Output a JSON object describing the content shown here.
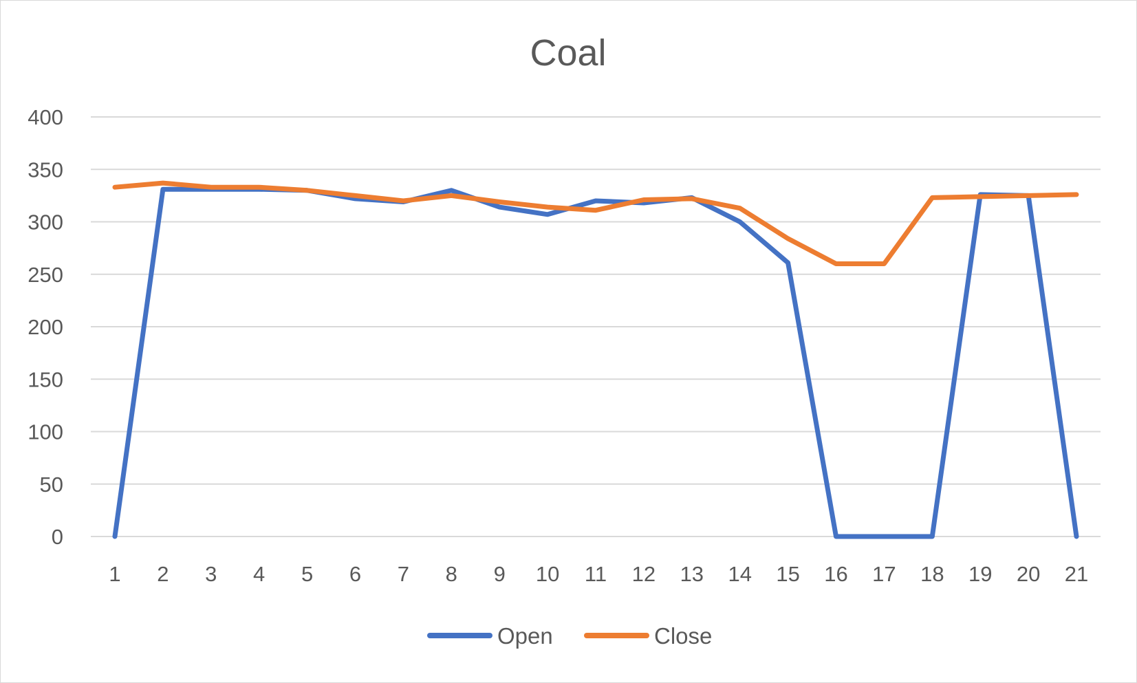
{
  "chart_data": {
    "type": "line",
    "title": "Coal",
    "xlabel": "",
    "ylabel": "",
    "categories": [
      "1",
      "2",
      "3",
      "4",
      "5",
      "6",
      "7",
      "8",
      "9",
      "10",
      "11",
      "12",
      "13",
      "14",
      "15",
      "16",
      "17",
      "18",
      "19",
      "20",
      "21"
    ],
    "ylim": [
      0,
      400
    ],
    "yticks": [
      0,
      50,
      100,
      150,
      200,
      250,
      300,
      350,
      400
    ],
    "grid": true,
    "legend": "bottom",
    "series": [
      {
        "name": "Open",
        "color": "#4472C4",
        "values": [
          0,
          331,
          331,
          331,
          330,
          322,
          319,
          330,
          314,
          307,
          320,
          318,
          323,
          300,
          261,
          0,
          0,
          0,
          326,
          325,
          0
        ]
      },
      {
        "name": "Close",
        "color": "#ED7D31",
        "values": [
          333,
          337,
          333,
          333,
          330,
          325,
          320,
          325,
          319,
          314,
          311,
          321,
          322,
          313,
          284,
          260,
          260,
          323,
          324,
          325,
          326
        ]
      }
    ]
  }
}
